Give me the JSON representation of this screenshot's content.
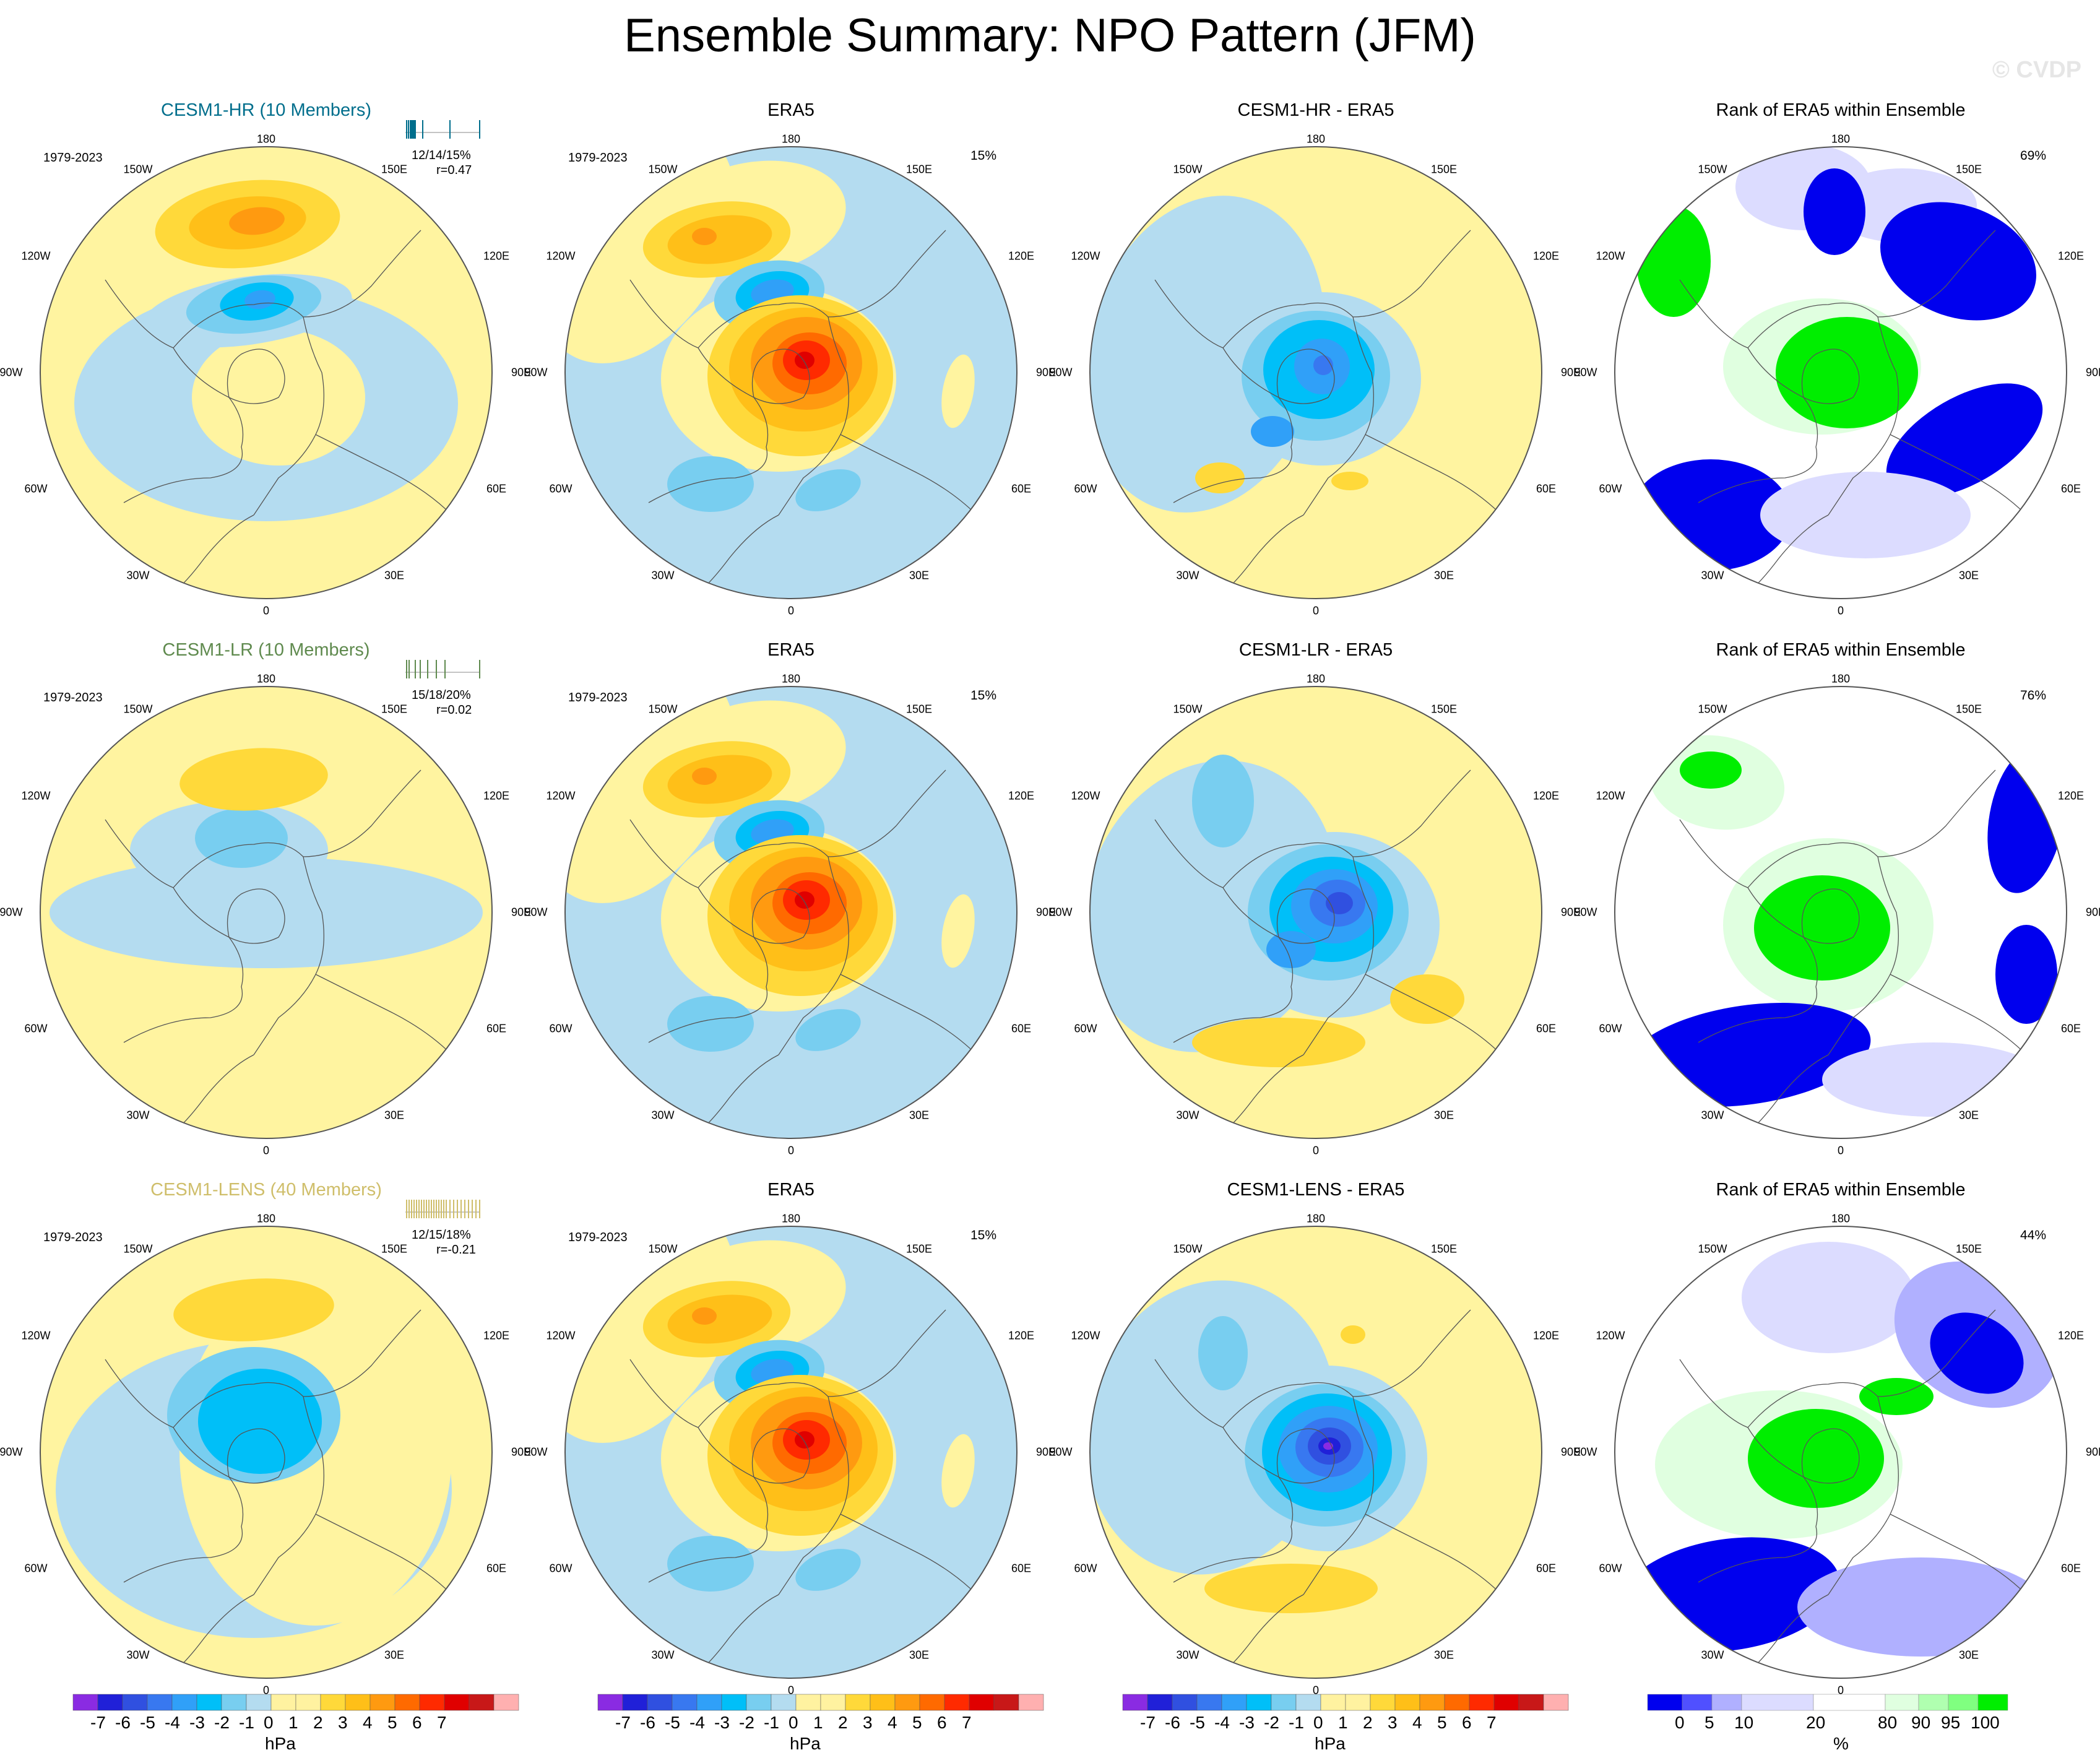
{
  "title": "Ensemble Summary: NPO Pattern (JFM)",
  "watermark": "© CVDP",
  "colors": {
    "diverging": [
      "#8a2be2",
      "#2020d8",
      "#3050e0",
      "#3878f0",
      "#30a0f8",
      "#00bff8",
      "#78cef0",
      "#b4dcf0",
      "#ffffff",
      "#fff2a0",
      "#ffd93a",
      "#ffbf18",
      "#ff9a10",
      "#ff6a00",
      "#ff2a00",
      "#e00000",
      "#c81818",
      "#ffb0b0"
    ],
    "rank": [
      "#0000ee",
      "#5050ff",
      "#b0b0ff",
      "#dcdcff",
      "#ffffff",
      "#e0ffe0",
      "#b0ffb0",
      "#80ff80",
      "#00ee00"
    ],
    "model_hr": "#006e8c",
    "model_lr": "#5f8a4e",
    "model_lens": "#cfbe6a"
  },
  "axis_labels": {
    "top": "180",
    "bottom": "0",
    "left_upper": "120W",
    "left_mid": "90W",
    "left_lower": "60W",
    "right_upper": "120E",
    "right_mid": "90E",
    "right_lower": "60E",
    "ul": "150W",
    "ur": "150E",
    "ll": "30W",
    "lr": "30E"
  },
  "rows": [
    {
      "model_title": "CESM1-HR (10 Members)",
      "model_years": "1979-2023",
      "model_stats": "12/14/15%",
      "model_r": "r=0.47",
      "obs_title": "ERA5",
      "obs_years": "1979-2023",
      "obs_pct": "15%",
      "diff_title": "CESM1-HR - ERA5",
      "rank_title": "Rank of ERA5 within Ensemble",
      "rank_pct": "69%"
    },
    {
      "model_title": "CESM1-LR (10 Members)",
      "model_years": "1979-2023",
      "model_stats": "15/18/20%",
      "model_r": "r=0.02",
      "obs_title": "ERA5",
      "obs_years": "1979-2023",
      "obs_pct": "15%",
      "diff_title": "CESM1-LR - ERA5",
      "rank_title": "Rank of ERA5 within Ensemble",
      "rank_pct": "76%"
    },
    {
      "model_title": "CESM1-LENS (40 Members)",
      "model_years": "1979-2023",
      "model_stats": "12/15/18%",
      "model_r": "r=-0.21",
      "obs_title": "ERA5",
      "obs_years": "1979-2023",
      "obs_pct": "15%",
      "diff_title": "CESM1-LENS - ERA5",
      "rank_title": "Rank of ERA5 within Ensemble",
      "rank_pct": "44%"
    }
  ],
  "colorbar_hpa": {
    "ticks": [
      "-7",
      "-6",
      "-5",
      "-4",
      "-3",
      "-2",
      "-1",
      "0",
      "1",
      "2",
      "3",
      "4",
      "5",
      "6",
      "7"
    ],
    "unit": "hPa"
  },
  "colorbar_rank": {
    "ticks": [
      "0",
      "5",
      "10",
      "20",
      "80",
      "90",
      "95",
      "100"
    ],
    "unit": "%"
  },
  "chart_data": [
    {
      "type": "heatmap",
      "title": "CESM1-HR (10 Members)",
      "projection": "polar stereographic, north pole",
      "variable": "SLP NPO pattern",
      "units": "hPa",
      "levels": [
        -7,
        -6,
        -5,
        -4,
        -3,
        -2,
        -1,
        0,
        1,
        2,
        3,
        4,
        5,
        6,
        7
      ],
      "centers": [
        {
          "name": "north Pacific high",
          "lon": 180,
          "lat": 40,
          "value": 3
        },
        {
          "name": "Bering low",
          "lon": 180,
          "lat": 62,
          "value": -4
        }
      ]
    },
    {
      "type": "heatmap",
      "title": "ERA5",
      "units": "hPa",
      "centers": [
        {
          "name": "north Pacific high",
          "lon": 180,
          "lat": 38,
          "value": 3
        },
        {
          "name": "Bering low",
          "lon": 175,
          "lat": 60,
          "value": -3
        },
        {
          "name": "Arctic high",
          "lon": 150,
          "lat": 82,
          "value": 6
        }
      ]
    },
    {
      "type": "heatmap",
      "title": "CESM1-HR - ERA5",
      "units": "hPa",
      "centers": [
        {
          "name": "Arctic low",
          "lon": 150,
          "lat": 82,
          "value": -5
        }
      ]
    },
    {
      "type": "heatmap",
      "title": "Rank of ERA5 within Ensemble",
      "units": "%",
      "levels": [
        0,
        5,
        10,
        20,
        80,
        90,
        95,
        100
      ]
    }
  ]
}
